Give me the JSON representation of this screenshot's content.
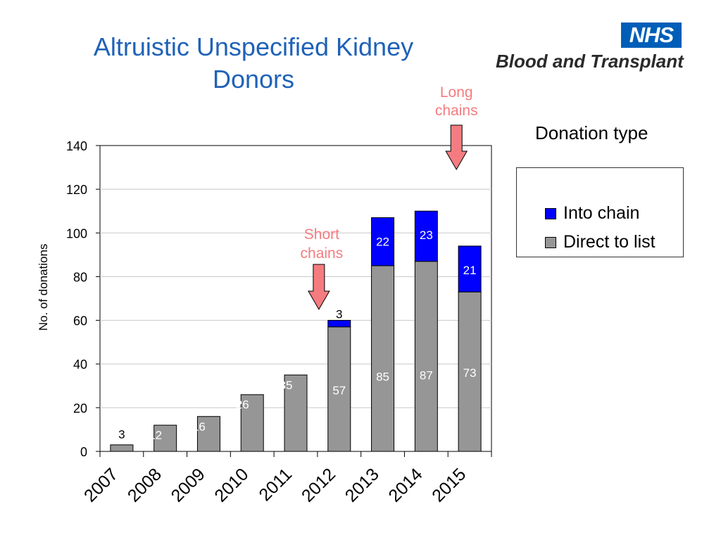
{
  "title_line1": "Altruistic Unspecified Kidney",
  "title_line2": "Donors",
  "logo": {
    "nhs": "NHS",
    "org": "Blood and Transplant"
  },
  "legend": {
    "title": "Donation type",
    "placement": "right",
    "items": [
      {
        "label": "Into chain",
        "color": "#0000ff"
      },
      {
        "label": "Direct to list",
        "color": "#969696"
      }
    ]
  },
  "annotations": {
    "short_chains": [
      "Short",
      "chains"
    ],
    "long_chains": [
      "Long",
      "chains"
    ],
    "color": "#f47c80"
  },
  "chart_data": {
    "type": "bar",
    "stacked": true,
    "categories": [
      "2007",
      "2008",
      "2009",
      "2010",
      "2011",
      "2012",
      "2013",
      "2014",
      "2015"
    ],
    "series": [
      {
        "name": "Direct to list",
        "color": "#969696",
        "values": [
          3,
          12,
          16,
          26,
          35,
          57,
          85,
          87,
          73
        ]
      },
      {
        "name": "Into chain",
        "color": "#0000ff",
        "values": [
          0,
          0,
          0,
          0,
          0,
          3,
          22,
          23,
          21
        ]
      }
    ],
    "data_labels": {
      "Direct to list": [
        "3",
        "12",
        "16",
        "26",
        "35",
        "57",
        "85",
        "87",
        "73"
      ],
      "Into chain": [
        "",
        "",
        "",
        "",
        "",
        "3",
        "22",
        "23",
        "21"
      ]
    },
    "ylabel": "No. of donations",
    "ylim": [
      0,
      140
    ],
    "yticks": [
      0,
      20,
      40,
      60,
      80,
      100,
      120,
      140
    ],
    "grid": true
  }
}
